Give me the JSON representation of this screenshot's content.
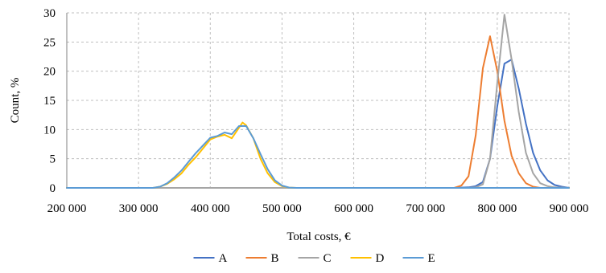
{
  "chart_data": {
    "type": "line",
    "title": "",
    "xlabel": "Total costs, €",
    "ylabel": "Count, %",
    "xlim": [
      200000,
      900000
    ],
    "ylim": [
      0,
      30
    ],
    "x_ticks": [
      200000,
      300000,
      400000,
      500000,
      600000,
      700000,
      800000,
      900000
    ],
    "x_tick_labels": [
      "200 000",
      "300 000",
      "400 000",
      "500 000",
      "600 000",
      "700 000",
      "800 000",
      "900 000"
    ],
    "y_ticks": [
      0,
      5,
      10,
      15,
      20,
      25,
      30
    ],
    "y_tick_labels": [
      "0",
      "5",
      "10",
      "15",
      "20",
      "25",
      "30"
    ],
    "grid": true,
    "legend_position": "bottom",
    "series": [
      {
        "name": "A",
        "color": "#4472C4",
        "x": [
          200000,
          740000,
          760000,
          770000,
          780000,
          790000,
          800000,
          810000,
          820000,
          830000,
          840000,
          850000,
          860000,
          870000,
          880000,
          890000,
          900000
        ],
        "y": [
          0,
          0,
          0.1,
          0.3,
          1,
          5,
          14,
          21.3,
          22,
          17,
          11,
          6,
          3,
          1.3,
          0.5,
          0.2,
          0
        ]
      },
      {
        "name": "B",
        "color": "#ED7D31",
        "x": [
          200000,
          740000,
          750000,
          760000,
          770000,
          780000,
          790000,
          800000,
          810000,
          820000,
          830000,
          840000,
          850000,
          860000,
          900000
        ],
        "y": [
          0,
          0,
          0.4,
          2,
          9,
          20.5,
          26,
          20,
          11.5,
          5.5,
          2.5,
          0.8,
          0.2,
          0,
          0
        ]
      },
      {
        "name": "C",
        "color": "#A5A5A5",
        "x": [
          200000,
          760000,
          770000,
          780000,
          790000,
          800000,
          810000,
          820000,
          830000,
          840000,
          850000,
          860000,
          870000,
          880000,
          900000
        ],
        "y": [
          0,
          0,
          0.1,
          0.6,
          5,
          18,
          29.7,
          22,
          13,
          6,
          2.5,
          0.8,
          0.3,
          0.1,
          0
        ]
      },
      {
        "name": "D",
        "color": "#FFC000",
        "x": [
          200000,
          320000,
          330000,
          340000,
          350000,
          360000,
          370000,
          380000,
          390000,
          400000,
          410000,
          420000,
          430000,
          440000,
          445000,
          450000,
          460000,
          470000,
          480000,
          490000,
          500000,
          510000,
          520000,
          900000
        ],
        "y": [
          0,
          0,
          0.2,
          0.7,
          1.5,
          2.5,
          4,
          5.3,
          6.8,
          8.3,
          8.8,
          9.1,
          8.5,
          10.3,
          11.2,
          10.7,
          8.5,
          5,
          2.5,
          1,
          0.3,
          0.05,
          0,
          0
        ]
      },
      {
        "name": "E",
        "color": "#5B9BD5",
        "x": [
          200000,
          320000,
          330000,
          340000,
          350000,
          360000,
          370000,
          380000,
          390000,
          400000,
          410000,
          420000,
          430000,
          440000,
          450000,
          460000,
          470000,
          480000,
          490000,
          500000,
          510000,
          520000,
          900000
        ],
        "y": [
          0,
          0,
          0.2,
          0.8,
          1.8,
          3,
          4.5,
          6,
          7.3,
          8.6,
          8.9,
          9.5,
          9.2,
          10.6,
          10.6,
          8.5,
          5.8,
          3.2,
          1.3,
          0.4,
          0.05,
          0,
          0
        ]
      }
    ]
  }
}
